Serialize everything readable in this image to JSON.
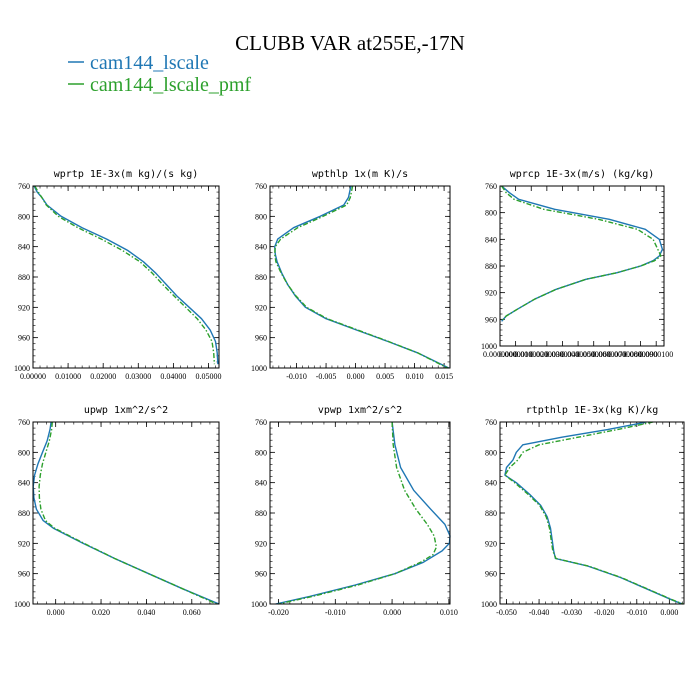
{
  "title": "CLUBB VAR at255E,-17N",
  "colors": {
    "series_a": "#1f77b4",
    "series_b": "#2ca02c"
  },
  "legend": [
    {
      "name": "cam144_lscale",
      "color": "#1f77b4",
      "dash": "solid"
    },
    {
      "name": "cam144_lscale_pmf",
      "color": "#2ca02c",
      "dash": "dashed"
    }
  ],
  "chart_data": [
    {
      "type": "line",
      "title": "wprtp  1E-3x(m kg)/(s kg)",
      "xlim": [
        0,
        0.053
      ],
      "ylim": [
        760,
        1000
      ],
      "y_inverted": true,
      "xticks": [
        0,
        0.01,
        0.02,
        0.03,
        0.04,
        0.05
      ],
      "xtick_labels": [
        "0.00000",
        "0.01000",
        "0.02000",
        "0.03000",
        "0.04000",
        "0.05000"
      ],
      "yticks": [
        760,
        800,
        840,
        880,
        920,
        960,
        1000
      ],
      "ytick_labels": [
        "760",
        "800",
        "840",
        "880",
        "920",
        "960",
        "1000"
      ],
      "series": [
        {
          "name": "cam144_lscale",
          "y": [
            760,
            768,
            775,
            785,
            800,
            815,
            830,
            845,
            860,
            875,
            890,
            905,
            920,
            935,
            950,
            965,
            980,
            995
          ],
          "x": [
            0.0003,
            0.0012,
            0.0025,
            0.004,
            0.008,
            0.014,
            0.021,
            0.027,
            0.0315,
            0.035,
            0.038,
            0.041,
            0.0445,
            0.048,
            0.0505,
            0.052,
            0.0525,
            0.0527
          ]
        },
        {
          "name": "cam144_lscale_pmf",
          "y": [
            760,
            768,
            775,
            785,
            800,
            815,
            830,
            845,
            860,
            875,
            890,
            905,
            920,
            935,
            950,
            965,
            980,
            995
          ],
          "x": [
            0.0005,
            0.0015,
            0.0025,
            0.0038,
            0.0072,
            0.0128,
            0.0195,
            0.0255,
            0.0305,
            0.034,
            0.037,
            0.0402,
            0.0435,
            0.0468,
            0.0493,
            0.051,
            0.0515,
            0.0517
          ]
        }
      ]
    },
    {
      "type": "line",
      "title": "wpthlp  1x(m K)/s",
      "xlim": [
        -0.0145,
        0.016
      ],
      "ylim": [
        760,
        1000
      ],
      "y_inverted": true,
      "xticks": [
        -0.01,
        -0.005,
        0,
        0.005,
        0.01,
        0.015
      ],
      "xtick_labels": [
        "-0.010",
        "-0.005",
        "0.000",
        "0.005",
        "0.010",
        "0.015"
      ],
      "yticks": [
        760,
        800,
        840,
        880,
        920,
        960,
        1000
      ],
      "ytick_labels": [
        "760",
        "800",
        "840",
        "880",
        "920",
        "960",
        "1000"
      ],
      "series": [
        {
          "name": "cam144_lscale",
          "y": [
            760,
            775,
            785,
            800,
            815,
            830,
            840,
            850,
            860,
            875,
            890,
            905,
            920,
            935,
            950,
            965,
            980,
            1000
          ],
          "x": [
            -0.0008,
            -0.0012,
            -0.002,
            -0.006,
            -0.0105,
            -0.0132,
            -0.0137,
            -0.0136,
            -0.0133,
            -0.0125,
            -0.0115,
            -0.0102,
            -0.0085,
            -0.005,
            0.0002,
            0.0055,
            0.0105,
            0.0158
          ]
        },
        {
          "name": "cam144_lscale_pmf",
          "y": [
            760,
            775,
            785,
            800,
            815,
            830,
            840,
            850,
            860,
            875,
            890,
            905,
            920,
            935,
            950,
            965,
            980,
            1000
          ],
          "x": [
            -0.0005,
            -0.0009,
            -0.0015,
            -0.0055,
            -0.0098,
            -0.0127,
            -0.0136,
            -0.0137,
            -0.0135,
            -0.0126,
            -0.0115,
            -0.0101,
            -0.0083,
            -0.0048,
            0.0004,
            0.0056,
            0.0105,
            0.0156
          ]
        }
      ]
    },
    {
      "type": "line",
      "title": "wprcp  1E-3x(m/s) (kg/kg)",
      "xlim": [
        0,
        1.05e-05
      ],
      "ylim": [
        760,
        1000
      ],
      "y_inverted": true,
      "xticks": [
        0,
        1e-06,
        2e-06,
        3e-06,
        4e-06,
        5e-06,
        6e-06,
        7e-06,
        8e-06,
        9e-06,
        1e-05
      ],
      "xtick_labels": [
        "0.0000000",
        "0.0000010",
        "0.0000020",
        "0.0000030",
        "0.0000040",
        "0.0000050",
        "0.0000060",
        "0.0000070",
        "0.0000080",
        "0.0000090",
        "0.0000100"
      ],
      "yticks": [
        760,
        800,
        840,
        880,
        920,
        960,
        1000
      ],
      "ytick_labels": [
        "760",
        "800",
        "840",
        "880",
        "920",
        "960",
        "1000"
      ],
      "series": [
        {
          "name": "cam144_lscale",
          "y": [
            760,
            770,
            780,
            795,
            810,
            825,
            840,
            855,
            865,
            872,
            880,
            890,
            900,
            915,
            930,
            945,
            955,
            963
          ],
          "x": [
            1e-07,
            6e-07,
            1.2e-06,
            3.5e-06,
            7e-06,
            9.3e-06,
            1.02e-05,
            1.04e-05,
            1.02e-05,
            9.8e-06,
            9e-06,
            7.5e-06,
            5.5e-06,
            3.6e-06,
            2.2e-06,
            1.1e-06,
            4e-07,
            1e-07
          ]
        },
        {
          "name": "cam144_lscale_pmf",
          "y": [
            760,
            770,
            780,
            795,
            810,
            825,
            840,
            855,
            865,
            872,
            880,
            890,
            900,
            915,
            930,
            945,
            955,
            963
          ],
          "x": [
            1e-07,
            4e-07,
            9e-07,
            2.8e-06,
            6.3e-06,
            8.8e-06,
            9.8e-06,
            1.01e-05,
            1.03e-05,
            9.9e-06,
            9e-06,
            7.5e-06,
            5.5e-06,
            3.6e-06,
            2.2e-06,
            1.1e-06,
            4e-07,
            1e-07
          ]
        }
      ]
    },
    {
      "type": "line",
      "title": "upwp  1xm^2/s^2",
      "xlim": [
        -0.01,
        0.072
      ],
      "ylim": [
        760,
        1000
      ],
      "y_inverted": true,
      "xticks": [
        0,
        0.02,
        0.04,
        0.06
      ],
      "xtick_labels": [
        "0.000",
        "0.020",
        "0.040",
        "0.060"
      ],
      "yticks": [
        760,
        800,
        840,
        880,
        920,
        960,
        1000
      ],
      "ytick_labels": [
        "760",
        "800",
        "840",
        "880",
        "920",
        "960",
        "1000"
      ],
      "series": [
        {
          "name": "cam144_lscale",
          "y": [
            760,
            770,
            785,
            800,
            815,
            830,
            845,
            860,
            875,
            890,
            900,
            920,
            940,
            960,
            980,
            1000
          ],
          "x": [
            -0.002,
            -0.0025,
            -0.0038,
            -0.0058,
            -0.0078,
            -0.0093,
            -0.0099,
            -0.0096,
            -0.0085,
            -0.0055,
            -0.001,
            0.012,
            0.026,
            0.041,
            0.056,
            0.072
          ]
        },
        {
          "name": "cam144_lscale_pmf",
          "y": [
            760,
            770,
            785,
            800,
            815,
            830,
            845,
            860,
            875,
            890,
            900,
            920,
            940,
            960,
            980,
            1000
          ],
          "x": [
            -0.0015,
            -0.0018,
            -0.0028,
            -0.0043,
            -0.0058,
            -0.0068,
            -0.0073,
            -0.0072,
            -0.0065,
            -0.0045,
            -0.0005,
            0.0125,
            0.026,
            0.041,
            0.056,
            0.071
          ]
        }
      ]
    },
    {
      "type": "line",
      "title": "vpwp  1xm^2/s^2",
      "xlim": [
        -0.0215,
        0.0102
      ],
      "ylim": [
        760,
        1000
      ],
      "y_inverted": true,
      "xticks": [
        -0.02,
        -0.01,
        0,
        0.01
      ],
      "xtick_labels": [
        "-0.020",
        "-0.010",
        "0.000",
        "0.010"
      ],
      "yticks": [
        760,
        800,
        840,
        880,
        920,
        960,
        1000
      ],
      "ytick_labels": [
        "760",
        "800",
        "840",
        "880",
        "920",
        "960",
        "1000"
      ],
      "series": [
        {
          "name": "cam144_lscale",
          "y": [
            760,
            790,
            820,
            850,
            875,
            895,
            910,
            920,
            930,
            945,
            960,
            975,
            990,
            1000
          ],
          "x": [
            0,
            0.0005,
            0.0015,
            0.0038,
            0.0068,
            0.0093,
            0.0102,
            0.0101,
            0.0088,
            0.0055,
            0.0005,
            -0.0065,
            -0.0145,
            -0.0205
          ]
        },
        {
          "name": "cam144_lscale_pmf",
          "y": [
            760,
            790,
            820,
            850,
            875,
            895,
            910,
            925,
            935,
            945,
            960,
            975,
            990,
            1000
          ],
          "x": [
            0,
            0.0002,
            0.0008,
            0.0022,
            0.0042,
            0.0062,
            0.0074,
            0.0078,
            0.0072,
            0.005,
            0.0005,
            -0.006,
            -0.014,
            -0.02
          ]
        }
      ]
    },
    {
      "type": "line",
      "title": "rtpthlp  1E-3x(kg K)/kg",
      "xlim": [
        -0.052,
        0.0045
      ],
      "ylim": [
        760,
        1000
      ],
      "y_inverted": true,
      "xticks": [
        -0.05,
        -0.04,
        -0.03,
        -0.02,
        -0.01,
        0
      ],
      "xtick_labels": [
        "-0.050",
        "-0.040",
        "-0.030",
        "-0.020",
        "-0.010",
        "0.000"
      ],
      "yticks": [
        760,
        800,
        840,
        880,
        920,
        960,
        1000
      ],
      "ytick_labels": [
        "760",
        "800",
        "840",
        "880",
        "920",
        "960",
        "1000"
      ],
      "series": [
        {
          "name": "cam144_lscale",
          "y": [
            760,
            770,
            780,
            790,
            800,
            810,
            820,
            830,
            840,
            855,
            870,
            885,
            900,
            915,
            930,
            940,
            950,
            965,
            980,
            995,
            1000
          ],
          "x": [
            -0.007,
            -0.019,
            -0.033,
            -0.045,
            -0.047,
            -0.048,
            -0.05,
            -0.0505,
            -0.047,
            -0.043,
            -0.0395,
            -0.0375,
            -0.0365,
            -0.036,
            -0.0355,
            -0.035,
            -0.025,
            -0.015,
            -0.007,
            0.001,
            0.004
          ]
        },
        {
          "name": "cam144_lscale_pmf",
          "y": [
            760,
            770,
            780,
            790,
            800,
            810,
            820,
            830,
            840,
            855,
            870,
            885,
            900,
            915,
            930,
            940,
            950,
            965,
            980,
            995,
            1000
          ],
          "x": [
            -0.005,
            -0.016,
            -0.028,
            -0.04,
            -0.045,
            -0.0465,
            -0.049,
            -0.0505,
            -0.0475,
            -0.0435,
            -0.0398,
            -0.0378,
            -0.0368,
            -0.0363,
            -0.0358,
            -0.0348,
            -0.0248,
            -0.0148,
            -0.0068,
            0.0012,
            0.0042
          ]
        }
      ]
    }
  ]
}
